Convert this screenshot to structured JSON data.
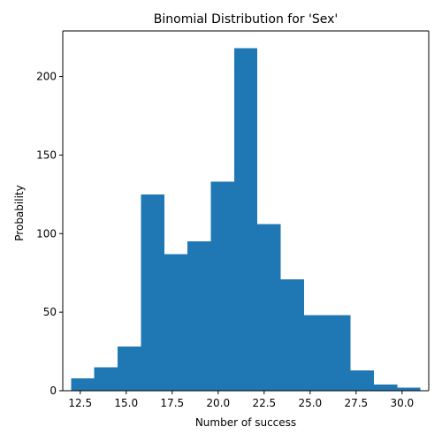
{
  "chart_data": {
    "type": "bar",
    "title": "Binomial Distribution for 'Sex'",
    "xlabel": "Number of success",
    "ylabel": "Probability",
    "xlim": [
      11.55,
      31.45
    ],
    "ylim": [
      0,
      229
    ],
    "xticks": [
      12.5,
      15.0,
      17.5,
      20.0,
      22.5,
      25.0,
      27.5,
      30.0
    ],
    "xtick_labels": [
      "12.5",
      "15.0",
      "17.5",
      "20.0",
      "22.5",
      "25.0",
      "27.5",
      "30.0"
    ],
    "yticks": [
      0,
      50,
      100,
      150,
      200
    ],
    "ytick_labels": [
      "0",
      "50",
      "100",
      "150",
      "200"
    ],
    "bin_edges": [
      12.0,
      13.267,
      14.533,
      15.8,
      17.067,
      18.333,
      19.6,
      20.867,
      22.133,
      23.4,
      24.667,
      25.933,
      27.2,
      28.467,
      29.733,
      31.0
    ],
    "values": [
      8,
      15,
      28,
      125,
      87,
      95,
      133,
      218,
      106,
      71,
      48,
      48,
      13,
      4,
      2
    ],
    "color": "#1f77b4",
    "grid": false,
    "legend": "none"
  }
}
